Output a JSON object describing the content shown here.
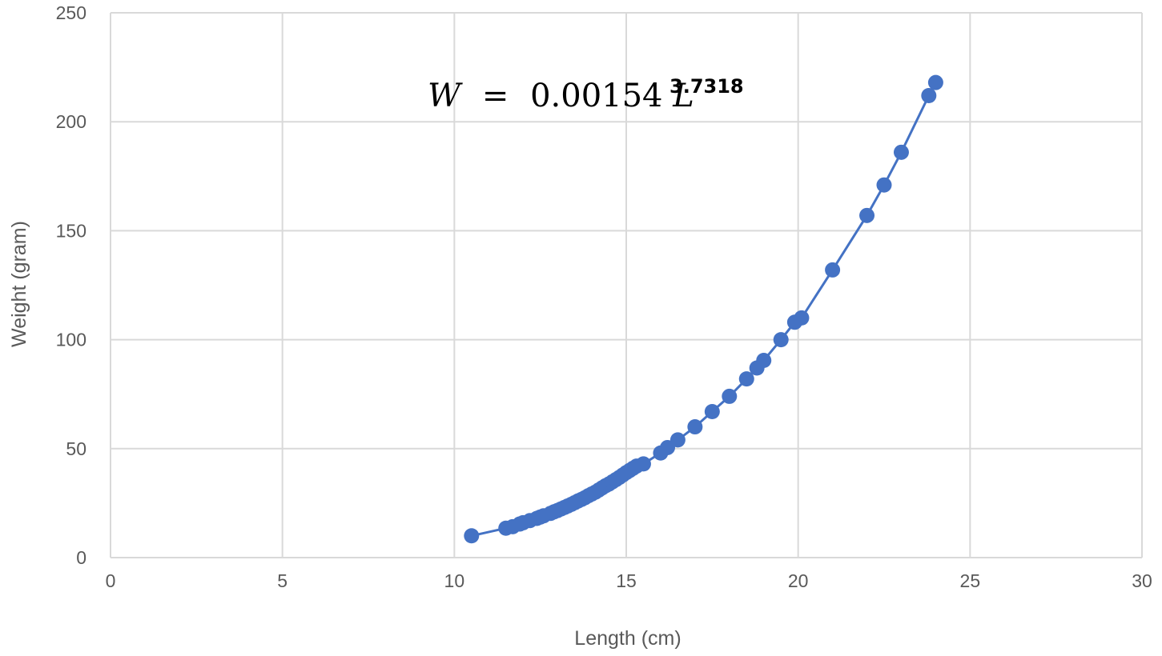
{
  "chart_data": {
    "type": "scatter",
    "title": "",
    "xlabel": "Length (cm)",
    "ylabel": "Weight (gram)",
    "xlim": [
      0,
      30
    ],
    "ylim": [
      0,
      250
    ],
    "x_ticks": [
      "0",
      "5",
      "10",
      "15",
      "20",
      "25",
      "30"
    ],
    "y_ticks": [
      "0",
      "50",
      "100",
      "150",
      "200",
      "250"
    ],
    "grid": true,
    "legend": "none",
    "annotation": {
      "lhs": "W",
      "equals": "=",
      "coefficient": "0.00154",
      "variable": "L",
      "exponent": "3.7318"
    },
    "colors": {
      "series": "#4472C4",
      "grid": "#d9d9d9",
      "text": "#595959"
    },
    "series": [
      {
        "markers": true,
        "line": true,
        "points": [
          [
            10.5,
            10
          ],
          [
            11.5,
            13.5
          ],
          [
            11.7,
            14.2
          ],
          [
            11.9,
            15.4
          ],
          [
            12.0,
            16
          ],
          [
            12.2,
            17
          ],
          [
            12.4,
            18
          ],
          [
            12.5,
            18.6
          ],
          [
            12.6,
            19.2
          ],
          [
            12.8,
            20.3
          ],
          [
            12.9,
            21
          ],
          [
            13.0,
            21.6
          ],
          [
            13.1,
            22.3
          ],
          [
            13.2,
            23
          ],
          [
            13.3,
            23.7
          ],
          [
            13.4,
            24.4
          ],
          [
            13.5,
            25.2
          ],
          [
            13.6,
            26
          ],
          [
            13.7,
            26.7
          ],
          [
            13.8,
            27.5
          ],
          [
            13.9,
            28.4
          ],
          [
            14.0,
            29.2
          ],
          [
            14.1,
            30
          ],
          [
            14.2,
            31
          ],
          [
            14.3,
            32
          ],
          [
            14.4,
            33
          ],
          [
            14.5,
            33.8
          ],
          [
            14.6,
            34.8
          ],
          [
            14.7,
            35.8
          ],
          [
            14.8,
            36.8
          ],
          [
            14.9,
            37.9
          ],
          [
            15.0,
            39
          ],
          [
            15.1,
            40
          ],
          [
            15.2,
            41
          ],
          [
            15.3,
            42
          ],
          [
            15.5,
            43
          ],
          [
            16.0,
            48
          ],
          [
            16.2,
            50.5
          ],
          [
            16.5,
            54
          ],
          [
            17.0,
            60
          ],
          [
            17.5,
            67
          ],
          [
            18.0,
            74
          ],
          [
            18.5,
            82
          ],
          [
            18.8,
            87
          ],
          [
            19.0,
            90.5
          ],
          [
            19.5,
            100
          ],
          [
            19.9,
            108
          ],
          [
            20.1,
            110
          ],
          [
            21.0,
            132
          ],
          [
            22.0,
            157
          ],
          [
            22.5,
            171
          ],
          [
            23.0,
            186
          ],
          [
            23.8,
            212
          ],
          [
            24.0,
            218
          ]
        ]
      }
    ]
  }
}
